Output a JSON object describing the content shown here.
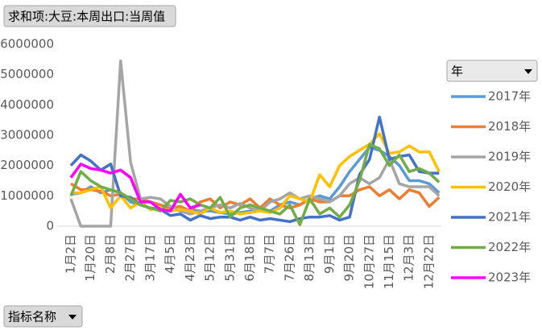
{
  "pivot_value_button": "求和项:大豆:本周出口:当周值",
  "pivot_axis_button": "指标名称",
  "chart_data": {
    "type": "line",
    "legend_title": "年",
    "categories": [
      "1月2日",
      null,
      "1月20日",
      null,
      "2月8日",
      null,
      "2月27日",
      null,
      "3月17日",
      null,
      "4月5日",
      null,
      "4月23日",
      null,
      "5月12日",
      null,
      "5月31日",
      null,
      "6月18日",
      null,
      "7月7日",
      null,
      "7月26日",
      null,
      "8月13日",
      null,
      "9月1日",
      null,
      "9月20日",
      null,
      "10月27日",
      null,
      "11月15日",
      null,
      "12月3日",
      null,
      "12月22日",
      null
    ],
    "ylim": [
      0,
      6000000
    ],
    "yticks": [
      0,
      1000000,
      2000000,
      3000000,
      4000000,
      5000000,
      6000000
    ],
    "grid": false,
    "legend": "right",
    "series": [
      {
        "name": "2017年",
        "color": "#5b9bd5",
        "values": [
          1050000,
          1100000,
          1300000,
          1100000,
          1200000,
          1100000,
          800000,
          700000,
          600000,
          550000,
          600000,
          500000,
          550000,
          500000,
          500000,
          450000,
          400000,
          450000,
          500000,
          600000,
          500000,
          700000,
          800000,
          700000,
          900000,
          1000000,
          900000,
          1300000,
          1800000,
          2200000,
          2600000,
          2500000,
          2300000,
          2000000,
          1500000,
          1500000,
          1400000,
          1100000
        ]
      },
      {
        "name": "2018年",
        "color": "#ed7d31",
        "values": [
          1400000,
          1200000,
          1200000,
          1150000,
          1000000,
          1050000,
          900000,
          900000,
          800000,
          700000,
          600000,
          650000,
          500000,
          800000,
          900000,
          600000,
          800000,
          700000,
          900000,
          600000,
          900000,
          700000,
          600000,
          700000,
          900000,
          800000,
          800000,
          1000000,
          1000000,
          1200000,
          1300000,
          1000000,
          1200000,
          900000,
          1200000,
          1100000,
          650000,
          950000
        ]
      },
      {
        "name": "2019年",
        "color": "#a5a5a5",
        "values": [
          900000,
          0,
          0,
          0,
          0,
          5450000,
          2100000,
          900000,
          950000,
          900000,
          650000,
          500000,
          400000,
          500000,
          600000,
          700000,
          600000,
          750000,
          600000,
          500000,
          800000,
          900000,
          1100000,
          900000,
          1000000,
          900000,
          800000,
          1000000,
          1400000,
          1600000,
          1400000,
          1600000,
          2200000,
          1400000,
          1300000,
          1300000,
          1300000,
          1000000
        ]
      },
      {
        "name": "2020年",
        "color": "#ffc000",
        "values": [
          1100000,
          1100000,
          1200000,
          1300000,
          600000,
          1000000,
          600000,
          800000,
          550000,
          600000,
          500000,
          550000,
          500000,
          400000,
          600000,
          450000,
          500000,
          400000,
          450000,
          500000,
          450000,
          600000,
          1000000,
          900000,
          800000,
          1700000,
          1300000,
          2000000,
          2300000,
          2500000,
          2700000,
          3050000,
          2400000,
          2450000,
          2650000,
          2450000,
          2450000,
          1800000
        ]
      },
      {
        "name": "2021年",
        "color": "#4472c4",
        "values": [
          2000000,
          2350000,
          2150000,
          1850000,
          2050000,
          1000000,
          950000,
          700000,
          600000,
          550000,
          350000,
          400000,
          200000,
          350000,
          250000,
          300000,
          300000,
          200000,
          300000,
          200000,
          250000,
          200000,
          150000,
          250000,
          300000,
          300000,
          350000,
          200000,
          300000,
          1700000,
          2200000,
          3600000,
          2200000,
          2300000,
          2350000,
          1800000,
          1750000,
          1750000
        ]
      },
      {
        "name": "2022年",
        "color": "#70ad47",
        "values": [
          1000000,
          1800000,
          1500000,
          1300000,
          1200000,
          1100000,
          900000,
          700000,
          600000,
          500000,
          850000,
          800000,
          900000,
          700000,
          600000,
          950000,
          300000,
          600000,
          700000,
          600000,
          500000,
          400000,
          700000,
          50000,
          900000,
          400000,
          600000,
          300000,
          700000,
          1500000,
          2700000,
          2550000,
          2000000,
          2350000,
          1800000,
          1900000,
          1750000,
          1450000
        ]
      },
      {
        "name": "2023年",
        "color": "#ff00ff",
        "values": [
          1600000,
          2050000,
          1900000,
          1850000,
          1750000,
          1850000,
          1600000,
          800000,
          800000,
          550000,
          500000,
          1050000,
          600000,
          700000,
          null,
          null,
          null,
          null,
          null,
          null,
          null,
          null,
          null,
          null,
          null,
          null,
          null,
          null,
          null,
          null,
          null,
          null,
          null,
          null,
          null,
          null,
          null,
          null
        ]
      }
    ]
  }
}
